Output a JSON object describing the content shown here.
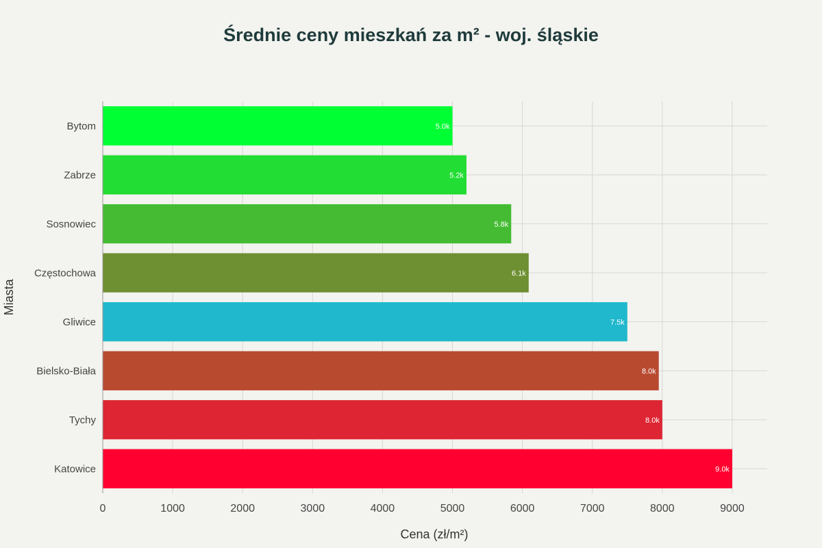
{
  "chart_data": {
    "type": "bar",
    "orientation": "horizontal",
    "title": "Średnie ceny mieszkań za m² - woj. śląskie",
    "xlabel": "Cena (zł/m²)",
    "ylabel": "Miasta",
    "xlim": [
      0,
      9500
    ],
    "xticks": [
      0,
      1000,
      2000,
      3000,
      4000,
      5000,
      6000,
      7000,
      8000,
      9000
    ],
    "grid": true,
    "legend": "none",
    "categories": [
      "Bytom",
      "Zabrze",
      "Sosnowiec",
      "Częstochowa",
      "Gliwice",
      "Bielsko-Biała",
      "Tychy",
      "Katowice"
    ],
    "values": [
      5000,
      5200,
      5840,
      6090,
      7500,
      7950,
      8000,
      9000
    ],
    "data_labels": [
      "5.0k",
      "5.2k",
      "5.8k",
      "6.1k",
      "7.5k",
      "8.0k",
      "8.0k",
      "9.0k"
    ],
    "colors": [
      "#00ff33",
      "#22dd33",
      "#44bb33",
      "#6e8f32",
      "#1fb8cc",
      "#b84a30",
      "#dd2533",
      "#ff0030"
    ]
  }
}
